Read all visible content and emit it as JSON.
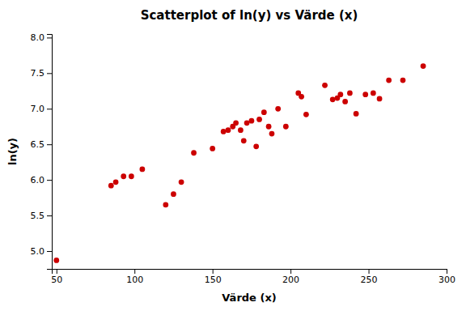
{
  "chart_data": {
    "type": "scatter",
    "title": "Scatterplot of ln(y) vs Värde (x)",
    "xlabel": "Värde (x)",
    "ylabel": "ln(y)",
    "x": [
      50,
      85,
      88,
      93,
      98,
      105,
      120,
      125,
      130,
      138,
      150,
      157,
      160,
      163,
      165,
      168,
      170,
      172,
      175,
      178,
      180,
      183,
      186,
      188,
      192,
      197,
      205,
      207,
      210,
      222,
      227,
      230,
      232,
      235,
      238,
      242,
      248,
      253,
      257,
      263,
      272,
      285
    ],
    "values": [
      4.87,
      5.92,
      5.97,
      6.05,
      6.05,
      6.15,
      5.65,
      5.8,
      5.97,
      6.38,
      6.44,
      6.68,
      6.7,
      6.75,
      6.8,
      6.7,
      6.55,
      6.8,
      6.83,
      6.47,
      6.85,
      6.95,
      6.75,
      6.65,
      7.0,
      6.75,
      7.22,
      7.17,
      6.92,
      7.33,
      7.13,
      7.15,
      7.2,
      7.1,
      7.22,
      6.93,
      7.2,
      7.22,
      7.14,
      7.4,
      7.4,
      7.6
    ],
    "color": "#cc0000",
    "marker": "circle",
    "xlim": [
      47,
      300
    ],
    "ylim": [
      4.75,
      8.05
    ],
    "xticks": [
      50,
      100,
      150,
      200,
      250,
      300
    ],
    "yticks": [
      {
        "value": 5.0,
        "label": "5.0"
      },
      5.5,
      {
        "value": 6.0,
        "label": "6.0"
      },
      6.5,
      {
        "value": 7.0,
        "label": "7.0"
      },
      7.5,
      {
        "value": 8.0,
        "label": "8.0"
      }
    ],
    "grid": false
  }
}
